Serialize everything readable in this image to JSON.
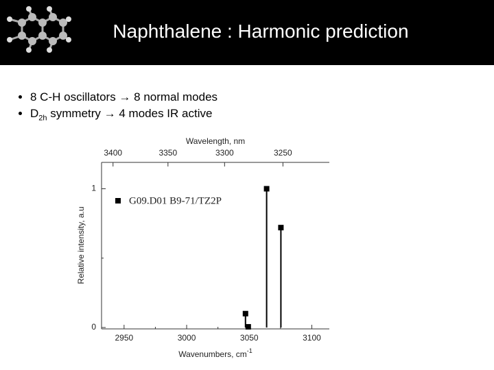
{
  "header": {
    "title": "Naphthalene : Harmonic prediction"
  },
  "bullets": [
    {
      "text": "8 C-H oscillators → 8 normal modes"
    },
    {
      "text_before": "D",
      "subscript": "2h",
      "text_after": " symmetry → 4 modes IR active"
    }
  ],
  "chart_data": {
    "type": "stick",
    "x_label": "Wavenumbers, cm",
    "x_label_sup": "-1",
    "x2_label": "Wavelength, nm",
    "y_label": "Relative intensity, a.u",
    "x": [
      3047,
      3049.2,
      3063.9,
      3075.3
    ],
    "series": [
      {
        "name": "G09.D01 B9-71/TZ2P",
        "color": "#000000",
        "values": [
          0.1,
          0.005,
          1.0,
          0.72
        ]
      }
    ],
    "xlim": [
      2932,
      3114
    ],
    "xticks": [
      2950,
      3000,
      3050,
      3100
    ],
    "xminorticks": [
      2975,
      3025,
      3075
    ],
    "x2ticks": [
      3400,
      3350,
      3300,
      3250
    ],
    "x2_conversion": 10000000,
    "ylim": [
      -0.01,
      1.19
    ],
    "yticks": [
      0,
      1
    ],
    "yminorticks": [
      0.5
    ],
    "legend": "upper left"
  }
}
